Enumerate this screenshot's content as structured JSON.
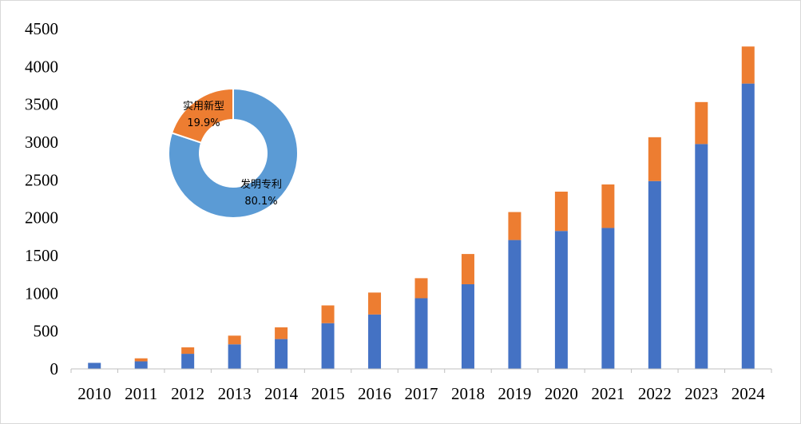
{
  "chart_data": [
    {
      "type": "bar",
      "stacked": true,
      "categories": [
        "2010",
        "2011",
        "2012",
        "2013",
        "2014",
        "2015",
        "2016",
        "2017",
        "2018",
        "2019",
        "2020",
        "2021",
        "2022",
        "2023",
        "2024"
      ],
      "series": [
        {
          "color": "#4472c4",
          "values": [
            80,
            100,
            200,
            325,
            395,
            605,
            720,
            935,
            1120,
            1705,
            1825,
            1865,
            2485,
            2975,
            3775
          ]
        },
        {
          "color": "#ed7d31",
          "values": [
            0,
            40,
            85,
            115,
            155,
            235,
            290,
            265,
            400,
            370,
            520,
            575,
            580,
            555,
            490
          ]
        }
      ],
      "ylim": [
        0,
        4500
      ],
      "yticks": [
        "0",
        "500",
        "1000",
        "1500",
        "2000",
        "2500",
        "3000",
        "3500",
        "4000",
        "4500"
      ],
      "grid": false,
      "legend": "none"
    },
    {
      "type": "pie",
      "donut": true,
      "slices": [
        {
          "label": "发明专利",
          "pct_label": "80.1%",
          "value": 80.1,
          "color": "#5b9bd5"
        },
        {
          "label": "实用新型",
          "pct_label": "19.9%",
          "value": 19.9,
          "color": "#ed7d31"
        }
      ]
    }
  ]
}
